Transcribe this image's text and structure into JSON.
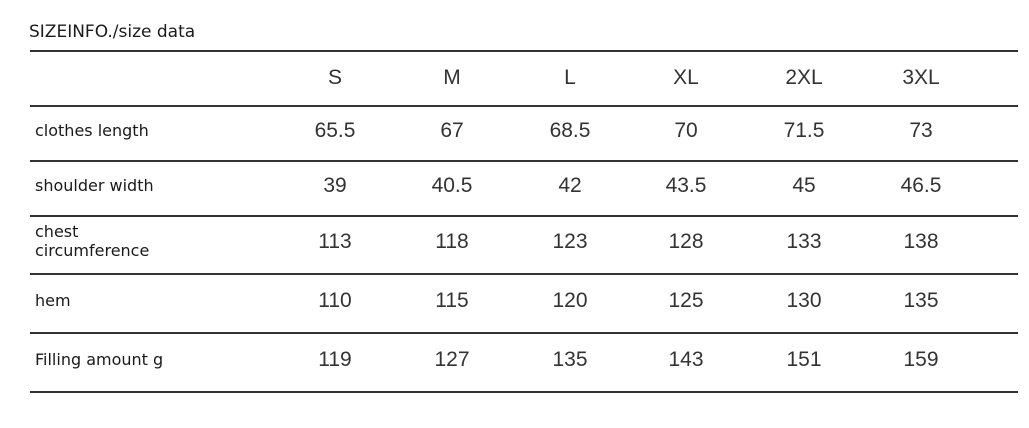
{
  "title": "SIZEINFO./size data",
  "sizes": [
    "S",
    "M",
    "L",
    "XL",
    "2XL",
    "3XL"
  ],
  "rows": [
    {
      "label": "clothes length",
      "values": [
        "65.5",
        "67",
        "68.5",
        "70",
        "71.5",
        "73"
      ]
    },
    {
      "label": "shoulder width",
      "values": [
        "39",
        "40.5",
        "42",
        "43.5",
        "45",
        "46.5"
      ]
    },
    {
      "label": "chest circumference",
      "values": [
        "113",
        "118",
        "123",
        "128",
        "133",
        "138"
      ]
    },
    {
      "label": "hem",
      "values": [
        "110",
        "115",
        "120",
        "125",
        "130",
        "135"
      ]
    },
    {
      "label": "Filling amount g",
      "values": [
        "119",
        "127",
        "135",
        "143",
        "151",
        "159"
      ]
    }
  ]
}
